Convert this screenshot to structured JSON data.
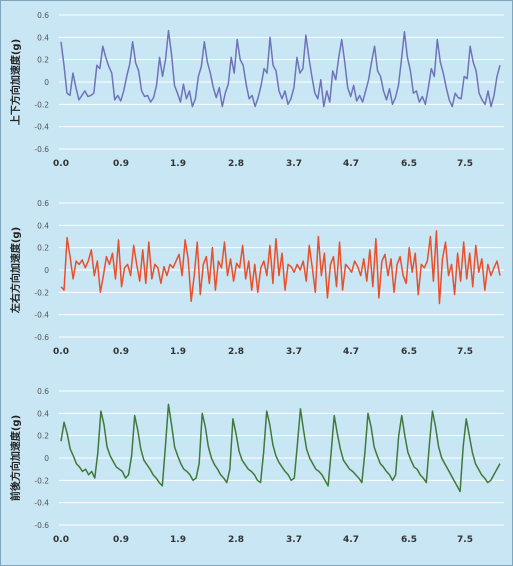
{
  "chart_data": [
    {
      "type": "line",
      "ylabel": "上下方向加速度(g)",
      "color": "#6f74b8",
      "ylim": [
        -0.6,
        0.6
      ],
      "yticks": [
        "0.6",
        "0.4",
        "0.2",
        "0",
        "-0.2",
        "-0.4",
        "-0.6"
      ],
      "xtick_labels": [
        "0.0",
        "0.9",
        "1.9",
        "2.8",
        "3.7",
        "4.7",
        "6.5",
        "7.5"
      ],
      "series": [
        {
          "values": [
            0.36,
            0.15,
            -0.1,
            -0.12,
            0.08,
            -0.05,
            -0.16,
            -0.12,
            -0.08,
            -0.13,
            -0.12,
            -0.1,
            0.15,
            0.12,
            0.32,
            0.22,
            0.14,
            0.08,
            -0.16,
            -0.12,
            -0.17,
            -0.08,
            0.05,
            0.16,
            0.36,
            0.17,
            0.1,
            -0.08,
            -0.13,
            -0.12,
            -0.18,
            -0.14,
            -0.03,
            0.22,
            0.05,
            0.2,
            0.46,
            0.25,
            -0.03,
            -0.1,
            -0.18,
            -0.02,
            -0.15,
            -0.08,
            -0.22,
            -0.15,
            0.05,
            0.14,
            0.36,
            0.18,
            0.08,
            -0.05,
            -0.14,
            -0.05,
            -0.22,
            -0.1,
            -0.02,
            0.22,
            0.08,
            0.38,
            0.2,
            0.15,
            -0.02,
            -0.15,
            -0.12,
            -0.22,
            -0.14,
            -0.03,
            0.12,
            0.08,
            0.4,
            0.15,
            0.1,
            -0.08,
            -0.15,
            -0.08,
            -0.2,
            -0.15,
            -0.05,
            0.22,
            0.08,
            0.12,
            0.42,
            0.22,
            0.05,
            -0.1,
            -0.15,
            0.02,
            -0.22,
            -0.08,
            -0.18,
            0.1,
            0.02,
            0.22,
            0.38,
            0.18,
            -0.05,
            -0.13,
            -0.03,
            -0.17,
            -0.12,
            -0.18,
            -0.08,
            0.02,
            0.18,
            0.32,
            0.1,
            0.05,
            -0.08,
            -0.16,
            -0.06,
            -0.2,
            -0.14,
            -0.03,
            0.2,
            0.45,
            0.22,
            0.1,
            -0.1,
            -0.08,
            -0.18,
            -0.13,
            -0.2,
            -0.05,
            0.12,
            0.05,
            0.38,
            0.18,
            0.08,
            -0.05,
            -0.16,
            -0.22,
            -0.1,
            -0.14,
            -0.15,
            0.05,
            0.03,
            0.32,
            0.18,
            0.1,
            -0.1,
            -0.16,
            -0.2,
            -0.08,
            -0.22,
            -0.12,
            0.05,
            0.15
          ]
        }
      ]
    },
    {
      "type": "line",
      "ylabel": "左右方向加速度(g)",
      "color": "#e8502c",
      "ylim": [
        -0.6,
        0.6
      ],
      "yticks": [
        "0.6",
        "0.4",
        "0.2",
        "0",
        "-0.2",
        "-0.4",
        "-0.6"
      ],
      "xtick_labels": [
        "0.0",
        "0.9",
        "1.9",
        "2.8",
        "3.7",
        "4.7",
        "6.5",
        "7.5"
      ],
      "series": [
        {
          "values": [
            -0.15,
            -0.18,
            0.29,
            0.12,
            -0.08,
            0.08,
            0.05,
            0.09,
            0.02,
            0.08,
            0.18,
            -0.05,
            0.08,
            -0.2,
            -0.05,
            0.12,
            0.05,
            0.15,
            -0.08,
            0.27,
            -0.15,
            0.02,
            0.05,
            -0.05,
            0.22,
            0.05,
            -0.1,
            0.18,
            -0.12,
            0.25,
            -0.08,
            0.05,
            0.02,
            -0.12,
            0.03,
            -0.05,
            0.05,
            0.02,
            0.08,
            0.14,
            -0.05,
            0.27,
            0.1,
            -0.28,
            -0.05,
            0.25,
            -0.22,
            0.05,
            0.12,
            -0.12,
            0.2,
            -0.18,
            0.08,
            0.02,
            0.25,
            -0.05,
            0.1,
            -0.1,
            0.06,
            0.02,
            0.22,
            -0.08,
            0.08,
            -0.18,
            0.05,
            -0.2,
            0.02,
            0.08,
            -0.05,
            0.22,
            -0.12,
            0.28,
            -0.05,
            0.15,
            -0.18,
            0.05,
            0.03,
            -0.02,
            0.05,
            0.0,
            0.08,
            -0.1,
            0.22,
            0.02,
            -0.2,
            0.3,
            -0.05,
            0.15,
            -0.25,
            0.05,
            0.12,
            -0.15,
            0.25,
            -0.18,
            0.05,
            0.02,
            -0.02,
            0.08,
            0.03,
            -0.05,
            0.1,
            -0.1,
            0.18,
            -0.15,
            0.28,
            -0.25,
            0.08,
            0.14,
            -0.05,
            0.1,
            -0.2,
            0.05,
            0.12,
            -0.05,
            -0.12,
            0.2,
            -0.02,
            0.15,
            -0.22,
            0.05,
            0.02,
            0.08,
            0.3,
            -0.1,
            0.35,
            -0.3,
            0.1,
            0.25,
            -0.05,
            0.05,
            -0.22,
            0.15,
            -0.1,
            0.25,
            -0.08,
            0.15,
            -0.15,
            0.22,
            -0.02,
            0.1,
            -0.18,
            0.05,
            -0.05,
            0.02,
            0.08,
            -0.05
          ]
        }
      ]
    },
    {
      "type": "line",
      "ylabel": "前後方向加速度(g)",
      "color": "#3f7a3a",
      "ylim": [
        -0.6,
        0.6
      ],
      "yticks": [
        "0.6",
        "0.4",
        "0.2",
        "0",
        "-0.2",
        "-0.4",
        "-0.6"
      ],
      "xtick_labels": [
        "0.0",
        "0.9",
        "1.9",
        "2.8",
        "3.7",
        "4.7",
        "6.5",
        "7.5"
      ],
      "series": [
        {
          "values": [
            0.15,
            0.32,
            0.22,
            0.08,
            0.02,
            -0.05,
            -0.08,
            -0.12,
            -0.1,
            -0.15,
            -0.12,
            -0.18,
            0.05,
            0.42,
            0.3,
            0.1,
            0.02,
            -0.03,
            -0.08,
            -0.1,
            -0.12,
            -0.18,
            -0.15,
            0.02,
            0.38,
            0.25,
            0.08,
            -0.02,
            -0.06,
            -0.1,
            -0.15,
            -0.18,
            -0.22,
            -0.25,
            0.1,
            0.48,
            0.3,
            0.1,
            0.02,
            -0.05,
            -0.1,
            -0.12,
            -0.15,
            -0.2,
            -0.18,
            -0.05,
            0.4,
            0.28,
            0.1,
            0.0,
            -0.06,
            -0.1,
            -0.15,
            -0.18,
            -0.22,
            -0.1,
            0.35,
            0.22,
            0.06,
            -0.02,
            -0.06,
            -0.1,
            -0.12,
            -0.15,
            -0.2,
            -0.22,
            0.05,
            0.42,
            0.3,
            0.12,
            0.02,
            -0.04,
            -0.08,
            -0.12,
            -0.15,
            -0.2,
            -0.18,
            0.12,
            0.44,
            0.25,
            0.08,
            0.0,
            -0.05,
            -0.1,
            -0.12,
            -0.15,
            -0.2,
            -0.25,
            0.05,
            0.38,
            0.22,
            0.08,
            -0.02,
            -0.06,
            -0.1,
            -0.12,
            -0.15,
            -0.18,
            -0.22,
            0.05,
            0.4,
            0.28,
            0.1,
            0.02,
            -0.05,
            -0.08,
            -0.12,
            -0.15,
            -0.2,
            -0.15,
            0.2,
            0.38,
            0.2,
            0.05,
            -0.02,
            -0.08,
            -0.1,
            -0.15,
            -0.18,
            -0.22,
            0.12,
            0.42,
            0.28,
            0.1,
            0.0,
            -0.05,
            -0.1,
            -0.15,
            -0.2,
            -0.25,
            -0.3,
            0.1,
            0.35,
            0.2,
            0.05,
            -0.05,
            -0.1,
            -0.15,
            -0.18,
            -0.22,
            -0.2,
            -0.15,
            -0.1,
            -0.05
          ]
        }
      ]
    }
  ]
}
